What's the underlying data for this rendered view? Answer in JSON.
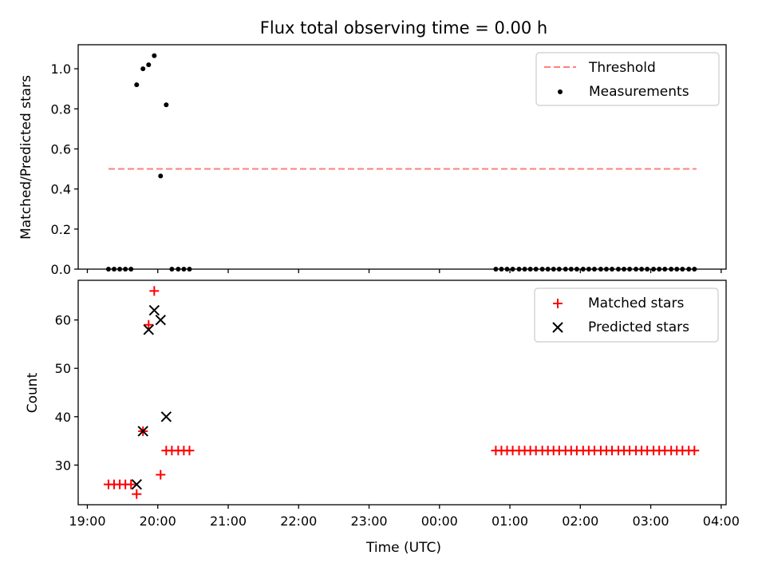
{
  "chart_data": {
    "type": "scatter",
    "title": "Flux total observing time = 0.00 h",
    "xlabel": "Time (UTC)",
    "x_unit": "hours after 19:00 UTC",
    "xlim": [
      -0.13,
      9.07
    ],
    "x_ticks": [
      {
        "value": 0,
        "label": "19:00"
      },
      {
        "value": 1,
        "label": "20:00"
      },
      {
        "value": 2,
        "label": "21:00"
      },
      {
        "value": 3,
        "label": "22:00"
      },
      {
        "value": 4,
        "label": "23:00"
      },
      {
        "value": 5,
        "label": "00:00"
      },
      {
        "value": 6,
        "label": "01:00"
      },
      {
        "value": 7,
        "label": "02:00"
      },
      {
        "value": 8,
        "label": "03:00"
      },
      {
        "value": 9,
        "label": "04:00"
      }
    ],
    "panels": [
      {
        "id": "ratio",
        "ylabel": "Matched/Predicted stars",
        "ylim": [
          0,
          1.12
        ],
        "y_ticks": [
          0.0,
          0.2,
          0.4,
          0.6,
          0.8,
          1.0
        ],
        "y_tick_labels": [
          "0.0",
          "0.2",
          "0.4",
          "0.6",
          "0.8",
          "1.0"
        ],
        "legend_position": "top-right",
        "legend": [
          {
            "label": "Threshold",
            "marker": "dashed-line",
            "color": "#ff7f7f"
          },
          {
            "label": "Measurements",
            "marker": "dot",
            "color": "#000000"
          }
        ],
        "series": [
          {
            "name": "Threshold",
            "kind": "line",
            "color": "#ff7f7f",
            "dash": "dashed",
            "points": [
              [
                0.3,
                0.5
              ],
              [
                8.65,
                0.5
              ]
            ]
          },
          {
            "name": "Measurements",
            "kind": "dot",
            "color": "#000000",
            "points": [
              [
                0.3,
                0
              ],
              [
                0.38,
                0
              ],
              [
                0.46,
                0
              ],
              [
                0.54,
                0
              ],
              [
                0.62,
                0
              ],
              [
                0.7,
                0.92
              ],
              [
                0.79,
                1.0
              ],
              [
                0.87,
                1.02
              ],
              [
                0.95,
                1.065
              ],
              [
                1.04,
                0.465
              ],
              [
                1.12,
                0.82
              ],
              [
                1.2,
                0
              ],
              [
                1.29,
                0
              ],
              [
                1.37,
                0
              ],
              [
                1.45,
                0
              ],
              [
                5.8,
                0
              ],
              [
                5.88,
                0
              ],
              [
                5.96,
                0
              ],
              [
                6.04,
                0
              ],
              [
                6.13,
                0
              ],
              [
                6.21,
                0
              ],
              [
                6.29,
                0
              ],
              [
                6.37,
                0
              ],
              [
                6.46,
                0
              ],
              [
                6.54,
                0
              ],
              [
                6.62,
                0
              ],
              [
                6.7,
                0
              ],
              [
                6.79,
                0
              ],
              [
                6.87,
                0
              ],
              [
                6.95,
                0
              ],
              [
                7.04,
                0
              ],
              [
                7.12,
                0
              ],
              [
                7.2,
                0
              ],
              [
                7.29,
                0
              ],
              [
                7.37,
                0
              ],
              [
                7.45,
                0
              ],
              [
                7.54,
                0
              ],
              [
                7.62,
                0
              ],
              [
                7.7,
                0
              ],
              [
                7.79,
                0
              ],
              [
                7.87,
                0
              ],
              [
                7.95,
                0
              ],
              [
                8.04,
                0
              ],
              [
                8.12,
                0
              ],
              [
                8.2,
                0
              ],
              [
                8.29,
                0
              ],
              [
                8.37,
                0
              ],
              [
                8.45,
                0
              ],
              [
                8.54,
                0
              ],
              [
                8.62,
                0
              ]
            ]
          }
        ]
      },
      {
        "id": "count",
        "ylabel": "Count",
        "ylim": [
          21.8,
          68.2
        ],
        "y_ticks": [
          30,
          40,
          50,
          60
        ],
        "y_tick_labels": [
          "30",
          "40",
          "50",
          "60"
        ],
        "legend_position": "top-right",
        "legend": [
          {
            "label": "Matched stars",
            "marker": "plus",
            "color": "#ff0000"
          },
          {
            "label": "Predicted stars",
            "marker": "x",
            "color": "#000000"
          }
        ],
        "series": [
          {
            "name": "Matched stars",
            "kind": "plus",
            "color": "#ff0000",
            "points": [
              [
                0.3,
                26
              ],
              [
                0.38,
                26
              ],
              [
                0.46,
                26
              ],
              [
                0.54,
                26
              ],
              [
                0.62,
                26
              ],
              [
                0.7,
                24
              ],
              [
                0.79,
                37
              ],
              [
                0.87,
                59
              ],
              [
                0.95,
                66
              ],
              [
                1.04,
                28
              ],
              [
                1.12,
                33
              ],
              [
                1.2,
                33
              ],
              [
                1.29,
                33
              ],
              [
                1.37,
                33
              ],
              [
                1.45,
                33
              ],
              [
                5.8,
                33
              ],
              [
                5.88,
                33
              ],
              [
                5.96,
                33
              ],
              [
                6.04,
                33
              ],
              [
                6.13,
                33
              ],
              [
                6.21,
                33
              ],
              [
                6.29,
                33
              ],
              [
                6.37,
                33
              ],
              [
                6.46,
                33
              ],
              [
                6.54,
                33
              ],
              [
                6.62,
                33
              ],
              [
                6.7,
                33
              ],
              [
                6.79,
                33
              ],
              [
                6.87,
                33
              ],
              [
                6.95,
                33
              ],
              [
                7.04,
                33
              ],
              [
                7.12,
                33
              ],
              [
                7.2,
                33
              ],
              [
                7.29,
                33
              ],
              [
                7.37,
                33
              ],
              [
                7.45,
                33
              ],
              [
                7.54,
                33
              ],
              [
                7.62,
                33
              ],
              [
                7.7,
                33
              ],
              [
                7.79,
                33
              ],
              [
                7.87,
                33
              ],
              [
                7.95,
                33
              ],
              [
                8.04,
                33
              ],
              [
                8.12,
                33
              ],
              [
                8.2,
                33
              ],
              [
                8.29,
                33
              ],
              [
                8.37,
                33
              ],
              [
                8.45,
                33
              ],
              [
                8.54,
                33
              ],
              [
                8.62,
                33
              ]
            ]
          },
          {
            "name": "Predicted stars",
            "kind": "x",
            "color": "#000000",
            "points": [
              [
                0.7,
                26
              ],
              [
                0.79,
                37
              ],
              [
                0.87,
                58
              ],
              [
                0.95,
                62
              ],
              [
                1.04,
                60
              ],
              [
                1.12,
                40
              ]
            ]
          }
        ]
      }
    ]
  }
}
